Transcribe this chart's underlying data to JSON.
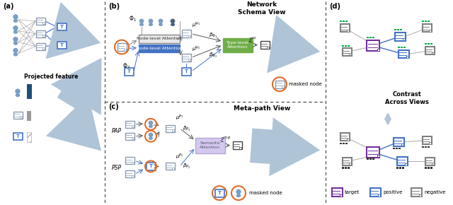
{
  "bg_color": "#ffffff",
  "section_labels": [
    "(a)",
    "(b)",
    "(c)",
    "(d)"
  ],
  "section_b_title": "Network\nSchema View",
  "section_c_title": "Meta-path View",
  "section_a_title": "Projected feature",
  "section_d_title": "Contrast\nAcross Views",
  "colors": {
    "person_blue": "#7B9EC4",
    "paper_border": "#8a9bb0",
    "topic_border": "#4472c4",
    "node_level_gray": "#a0a0a0",
    "node_level_blue": "#4472c4",
    "type_level_green": "#70ad47",
    "semantic_purple": "#b4a7d6",
    "masked_orange": "#e06c28",
    "target_purple": "#7030a0",
    "positive_blue": "#4472c4",
    "negative_gray": "#808080",
    "green_bar": "#00aa44",
    "black_bar": "#333333",
    "arrow_fill": "#b0c4d8",
    "dark_person": "#4a6080"
  }
}
